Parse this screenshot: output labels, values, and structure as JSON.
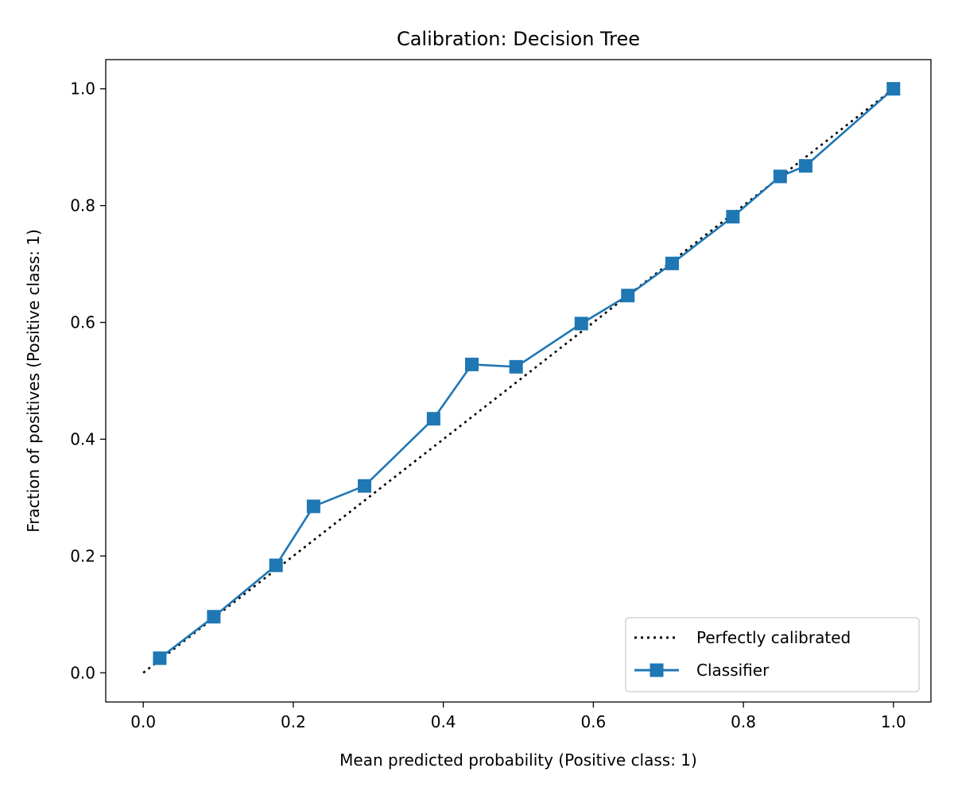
{
  "chart_data": {
    "type": "line",
    "title": "Calibration: Decision Tree",
    "xlabel": "Mean predicted probability (Positive class: 1)",
    "ylabel": "Fraction of positives (Positive class: 1)",
    "xlim": [
      -0.05,
      1.05
    ],
    "ylim": [
      -0.05,
      1.05
    ],
    "xticks": [
      0.0,
      0.2,
      0.4,
      0.6,
      0.8,
      1.0
    ],
    "yticks": [
      0.0,
      0.2,
      0.4,
      0.6,
      0.8,
      1.0
    ],
    "xtick_labels": [
      "0.0",
      "0.2",
      "0.4",
      "0.6",
      "0.8",
      "1.0"
    ],
    "ytick_labels": [
      "0.0",
      "0.2",
      "0.4",
      "0.6",
      "0.8",
      "1.0"
    ],
    "grid": false,
    "legend_position": "lower-right",
    "series": [
      {
        "name": "Perfectly calibrated",
        "style": "dotted",
        "color": "#000000",
        "x": [
          0.0,
          1.0
        ],
        "y": [
          0.0,
          1.0
        ]
      },
      {
        "name": "Classifier",
        "style": "solid",
        "marker": "square",
        "color": "#1f77b4",
        "x": [
          0.022,
          0.094,
          0.177,
          0.227,
          0.295,
          0.387,
          0.438,
          0.497,
          0.584,
          0.646,
          0.705,
          0.786,
          0.849,
          0.883,
          1.0
        ],
        "y": [
          0.025,
          0.096,
          0.184,
          0.285,
          0.32,
          0.435,
          0.528,
          0.524,
          0.598,
          0.646,
          0.701,
          0.781,
          0.85,
          0.868,
          1.0
        ]
      }
    ]
  }
}
